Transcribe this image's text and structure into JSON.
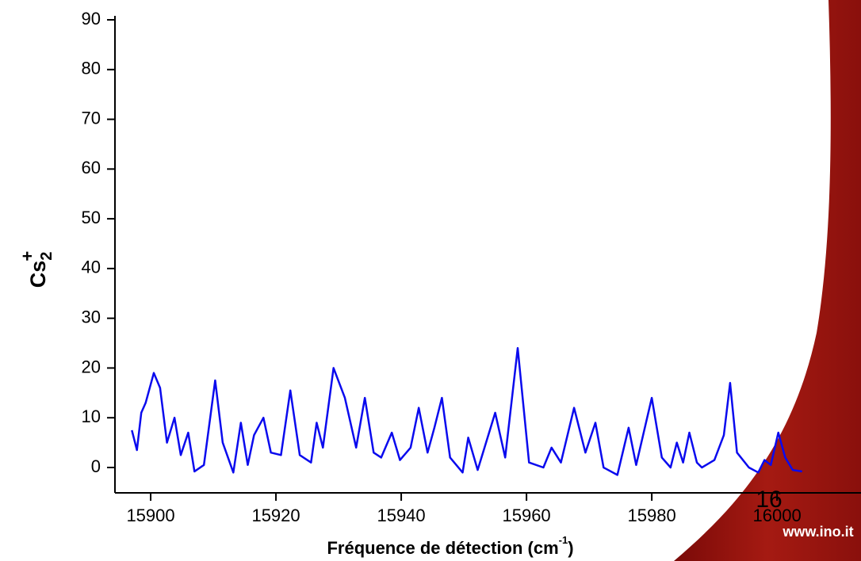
{
  "chart_data": {
    "type": "line",
    "x_label": {
      "text": "Fréquence de détection (cm",
      "sup": "-1",
      "end": ")"
    },
    "y_label": {
      "base": "Cs",
      "sub": "2",
      "sup": "+"
    },
    "x": [
      15897,
      15897.8,
      15898.5,
      15899.2,
      15900.5,
      15901.5,
      15902.6,
      15903.8,
      15904.8,
      15906,
      15907,
      15908.5,
      15910.3,
      15911.5,
      15913.2,
      15914.4,
      15915.5,
      15916.5,
      15918,
      15919.2,
      15920.8,
      15922.3,
      15923.8,
      15925.6,
      15926.5,
      15927.5,
      15929.2,
      15931,
      15932.8,
      15934.2,
      15935.6,
      15936.8,
      15938.5,
      15939.8,
      15941.5,
      15942.8,
      15944.2,
      15945.3,
      15946.5,
      15947.8,
      15949.8,
      15950.7,
      15952.2,
      15955,
      15956.6,
      15958.6,
      15960.4,
      15962.7,
      15964,
      15965.5,
      15967.6,
      15969.4,
      15971,
      15972.3,
      15974.5,
      15976.3,
      15977.5,
      15980,
      15981.6,
      15983,
      15984,
      15985,
      15986,
      15987.2,
      15988,
      15990,
      15991.5,
      15992.5,
      15993.6,
      15995.5,
      15997,
      15998,
      15999,
      16000.2,
      16001.3,
      16002.5,
      16004
    ],
    "series": [
      {
        "color": "#0a0aee",
        "values": [
          7.5,
          3.5,
          11,
          13,
          19,
          16,
          5,
          10,
          2.5,
          7,
          -0.8,
          0.5,
          17.5,
          5,
          -1,
          9,
          0.5,
          6.5,
          10,
          3,
          2.5,
          15.5,
          2.5,
          1,
          9,
          4,
          20,
          14,
          4,
          14,
          3,
          2,
          7,
          1.5,
          4,
          12,
          3,
          8,
          14,
          2,
          -1,
          6,
          -0.5,
          11,
          2,
          24,
          1,
          0,
          4,
          1,
          12,
          3,
          9,
          0,
          -1.5,
          8,
          0.5,
          14,
          2,
          0,
          5,
          1,
          7,
          1,
          0,
          1.5,
          6.5,
          17,
          3,
          0,
          -1,
          1.5,
          0.5,
          7,
          2,
          -0.5,
          -0.8
        ]
      }
    ],
    "xlim": [
      15894.3,
      16013.4
    ],
    "xticks": [
      15900,
      15920,
      15940,
      15960,
      15980,
      16000
    ],
    "ylim": [
      -5.1,
      90.8
    ],
    "yticks": [
      0,
      10,
      20,
      30,
      40,
      50,
      60,
      70,
      80,
      90
    ]
  },
  "footer": {
    "page_number": "16",
    "website": "www.ino.it"
  }
}
